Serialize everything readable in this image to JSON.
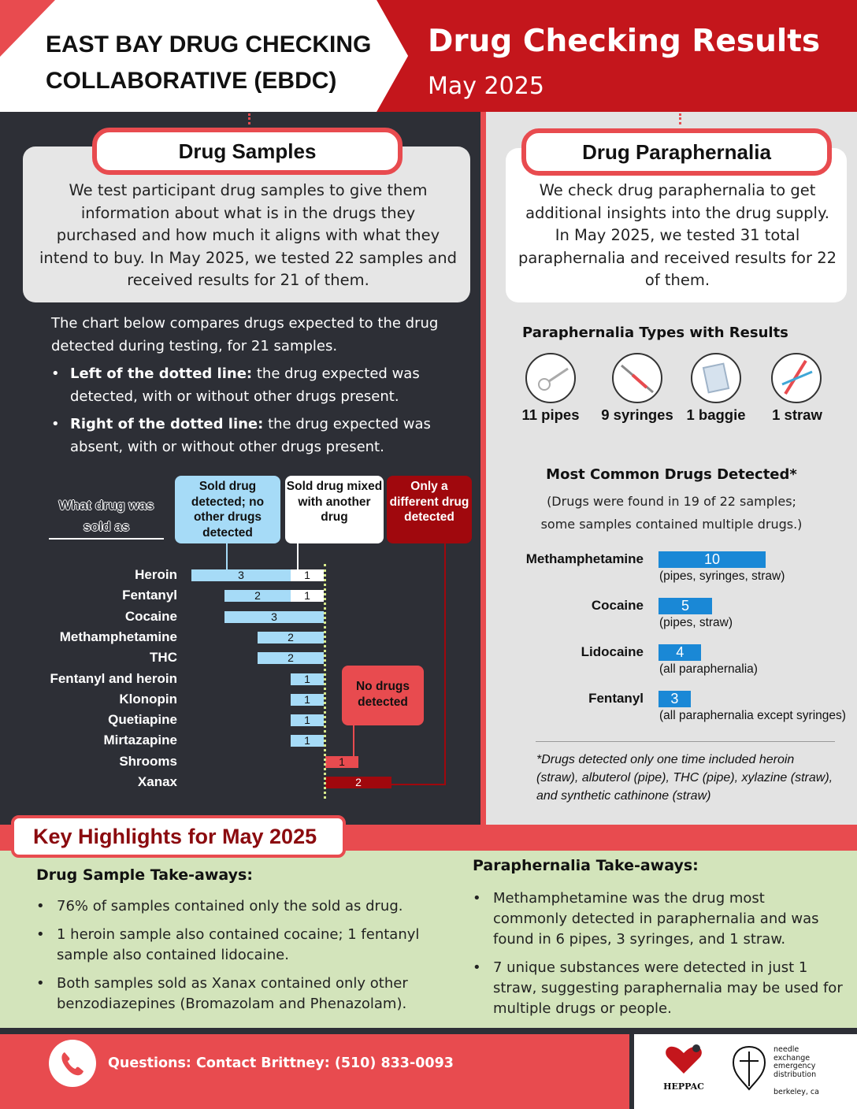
{
  "header": {
    "org_line1": "EAST BAY DRUG CHECKING",
    "org_line2": "COLLABORATIVE (EBDC)",
    "title": "Drug Checking Results",
    "subtitle": "May 2025"
  },
  "drug_samples": {
    "heading": "Drug Samples",
    "paragraph": "We test participant drug samples to give them information about what is in the drugs they purchased and how much it aligns with what they intend to buy. In May 2025, we tested 22 samples and received results for 21 of them.",
    "chart_intro": "The chart below compares drugs expected to the drug detected during testing, for 21 samples.",
    "bullet1_bold": "Left of the dotted line:",
    "bullet1_text": " the drug expected was detected, with or without other drugs present.",
    "bullet2_bold": "Right of the dotted line:",
    "bullet2_text": " the drug expected was absent, with or without other drugs present.",
    "legend": {
      "sold_as": "What drug was sold as",
      "only_sold": "Sold drug detected; no other drugs detected",
      "mixed": "Sold drug mixed with another drug",
      "different": "Only a different drug detected",
      "none": "No drugs detected"
    }
  },
  "chart_data": {
    "type": "bar",
    "categories": [
      "Heroin",
      "Fentanyl",
      "Cocaine",
      "Methamphetamine",
      "THC",
      "Fentanyl and heroin",
      "Klonopin",
      "Quetiapine",
      "Mirtazapine",
      "Shrooms",
      "Xanax"
    ],
    "series": [
      {
        "name": "Sold drug detected; no other drugs detected",
        "values": [
          3,
          2,
          3,
          2,
          2,
          1,
          1,
          1,
          1,
          0,
          0
        ],
        "color": "#a6dbf7"
      },
      {
        "name": "Sold drug mixed with another drug",
        "values": [
          1,
          1,
          0,
          0,
          0,
          0,
          0,
          0,
          0,
          0,
          0
        ],
        "color": "#ffffff"
      },
      {
        "name": "No drugs detected",
        "values": [
          0,
          0,
          0,
          0,
          0,
          0,
          0,
          0,
          0,
          1,
          0
        ],
        "color": "#e84b4f"
      },
      {
        "name": "Only a different drug detected",
        "values": [
          0,
          0,
          0,
          0,
          0,
          0,
          0,
          0,
          0,
          0,
          2
        ],
        "color": "#a0080d"
      }
    ]
  },
  "paraphernalia": {
    "heading": "Drug Paraphernalia",
    "paragraph": "We check drug paraphernalia to get additional insights into the drug supply. In May 2025, we tested 31 total paraphernalia and received results for 22 of them.",
    "types_heading": "Paraphernalia Types with Results",
    "types": [
      {
        "label": "11 pipes",
        "icon": "pipe-icon"
      },
      {
        "label": "9 syringes",
        "icon": "syringe-icon"
      },
      {
        "label": "1 baggie",
        "icon": "baggie-icon"
      },
      {
        "label": "1 straw",
        "icon": "straw-icon"
      }
    ],
    "common_heading": "Most Common Drugs Detected*",
    "common_sub1": "(Drugs were found in 19 of 22 samples;",
    "common_sub2": "some samples contained multiple drugs.)",
    "drugs": [
      {
        "name": "Methamphetamine",
        "value": 10,
        "note": "(pipes, syringes, straw)"
      },
      {
        "name": "Cocaine",
        "value": 5,
        "note": "(pipes, straw)"
      },
      {
        "name": "Lidocaine",
        "value": 4,
        "note": "(all paraphernalia)"
      },
      {
        "name": "Fentanyl",
        "value": 3,
        "note": "(all paraphernalia except syringes)"
      }
    ],
    "footnote": "*Drugs detected only one time included heroin (straw), albuterol (pipe), THC (pipe), xylazine (straw), and synthetic cathinone (straw)"
  },
  "highlights": {
    "title": "Key Highlights for May 2025",
    "drug_head": "Drug Sample Take-aways:",
    "drug_items": [
      "76% of samples contained only the sold as drug.",
      "1 heroin sample also contained cocaine; 1 fentanyl sample also contained lidocaine.",
      "Both samples sold as Xanax contained only other benzodiazepines (Bromazolam and Phenazolam)."
    ],
    "para_head": "Paraphernalia Take-aways:",
    "para_items": [
      "Methamphetamine was the drug most commonly detected in paraphernalia and was found in 6 pipes, 3 syringes, and 1 straw.",
      "7 unique substances were detected in just 1 straw, suggesting paraphernalia may be used for multiple drugs or people."
    ]
  },
  "footer": {
    "contact": "Questions: Contact Brittney: (510) 833-0093",
    "logo1": "HEPPAC",
    "logo2_lines": [
      "needle",
      "exchange",
      "emergency",
      "distribution"
    ],
    "logo2_city": "berkeley, ca"
  },
  "colors": {
    "brand_red": "#c4161c",
    "accent_red": "#e84b4f",
    "dark": "#2d2f36",
    "light_blue": "#a6dbf7",
    "dark_red": "#a0080d",
    "drug_bar": "#1a88d6",
    "highlight_green": "#d3e4bb"
  }
}
